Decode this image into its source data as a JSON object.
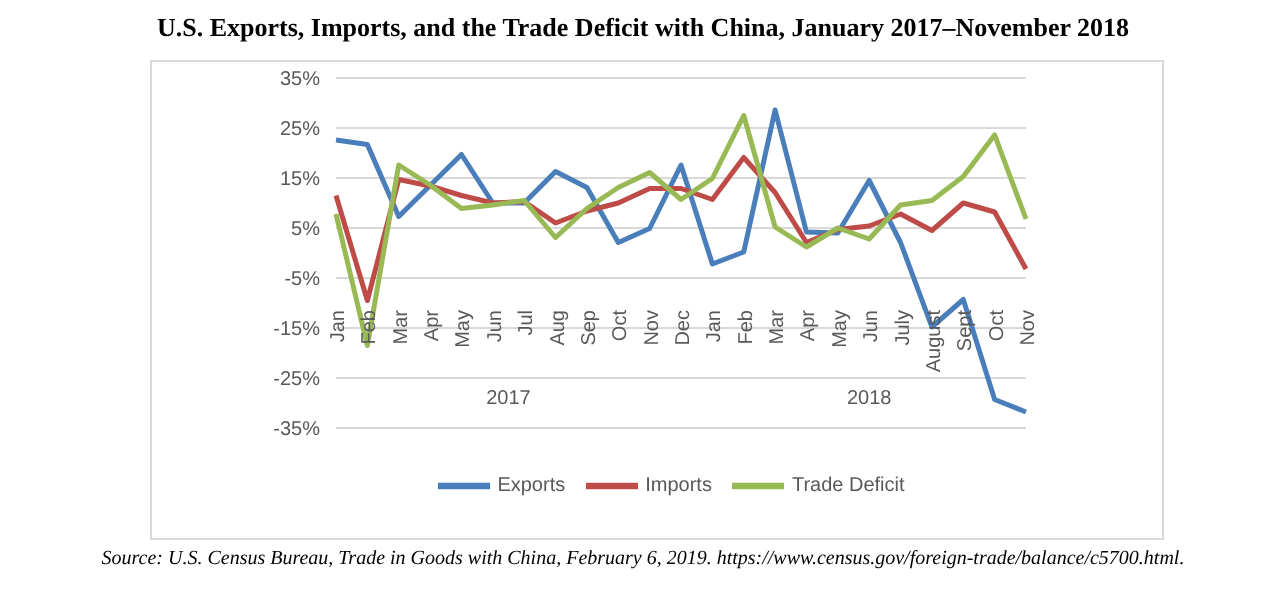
{
  "chart_data": {
    "type": "line",
    "title": "U.S. Exports, Imports, and the Trade Deficit with China, January 2017–November 2018",
    "categories": [
      "Jan",
      "Feb",
      "Mar",
      "Apr",
      "May",
      "Jun",
      "Jul",
      "Aug",
      "Sep",
      "Oct",
      "Nov",
      "Dec",
      "Jan",
      "Feb",
      "Mar",
      "Apr",
      "May",
      "Jun",
      "July",
      "August",
      "Sept",
      "Oct",
      "Nov"
    ],
    "series": [
      {
        "name": "Exports",
        "color": "#4a7ebb",
        "values": [
          22.6,
          21.7,
          7.3,
          13.5,
          19.7,
          10,
          10,
          16.3,
          13.1,
          2.1,
          4.9,
          17.6,
          -2.2,
          0.2,
          28.6,
          4.2,
          4,
          14.5,
          2.1,
          -14.8,
          -9.3,
          -29.3,
          -31.8
        ]
      },
      {
        "name": "Imports",
        "color": "#be4b48",
        "values": [
          11.5,
          -9.5,
          14.7,
          13.4,
          11.5,
          10,
          10.3,
          6,
          8.4,
          10,
          12.9,
          12.9,
          10.7,
          19.1,
          12.1,
          2.1,
          4.7,
          5.4,
          7.8,
          4.5,
          10,
          8.2,
          -3.2
        ]
      },
      {
        "name": "Trade Deficit",
        "color": "#98b954",
        "values": [
          7.8,
          -18.5,
          17.6,
          13.6,
          8.9,
          9.6,
          10.5,
          3.1,
          8.9,
          13.1,
          16.1,
          10.7,
          14.9,
          27.5,
          5.2,
          1.2,
          5,
          2.8,
          9.6,
          10.5,
          15.3,
          23.6,
          6.8
        ]
      }
    ],
    "ylim": [
      -35,
      35
    ],
    "yticks": [
      {
        "value": -35,
        "label": "-35%"
      },
      {
        "value": -25,
        "label": "-25%"
      },
      {
        "value": -15,
        "label": "-15%"
      },
      {
        "value": -5,
        "label": "-5%"
      },
      {
        "value": 5,
        "label": "5%"
      },
      {
        "value": 15,
        "label": "15%"
      },
      {
        "value": 25,
        "label": "25%"
      },
      {
        "value": 35,
        "label": "35%"
      }
    ],
    "grid": "y",
    "legend": "bottom",
    "marker": "none",
    "line_style": "solid",
    "annotations": [
      "2017",
      "2018",
      "Source: U.S. Census Bureau, Trade in Goods with China, February 6, 2019. https://www.census.gov/foreign-trade/balance/c5700.html."
    ]
  }
}
